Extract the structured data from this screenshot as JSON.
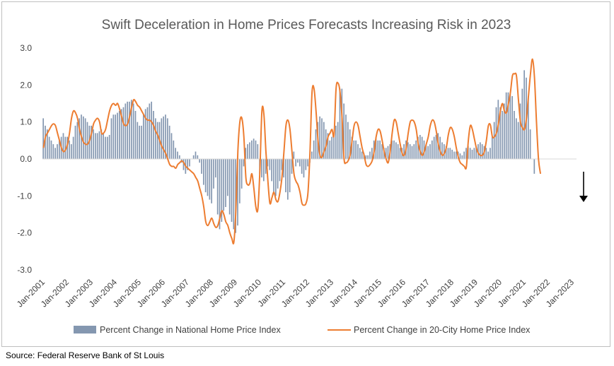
{
  "source": "Source: Federal Reserve Bank of St Louis",
  "chart_data": {
    "type": "bar+line",
    "title": "Swift Deceleration in Home Prices Forecasts Increasing Risk in 2023",
    "ylim": [
      -3.0,
      3.0
    ],
    "yticks": [
      "3.0",
      "2.0",
      "1.0",
      "0.0",
      "-1.0",
      "-2.0",
      "-3.0"
    ],
    "xticks": [
      "Jan-2001",
      "Jan-2002",
      "Jan-2003",
      "Jan-2004",
      "Jan-2005",
      "Jan-2006",
      "Jan-2007",
      "Jan-2008",
      "Jan-2009",
      "Jan-2010",
      "Jan-2011",
      "Jan-2012",
      "Jan-2013",
      "Jan-2014",
      "Jan-2015",
      "Jan-2016",
      "Jan-2017",
      "Jan-2018",
      "Jan-2019",
      "Jan-2020",
      "Jan-2021",
      "Jan-2022",
      "Jan-2023"
    ],
    "grid": false,
    "legend_position": "bottom",
    "colors": {
      "bars": "#8497b0",
      "line": "#ed7d31",
      "title": "#595959"
    },
    "series": [
      {
        "name": "Percent Change in National Home Price Index",
        "kind": "bar",
        "start": "2001-01",
        "values": [
          1.1,
          0.9,
          0.8,
          0.6,
          0.5,
          0.4,
          0.3,
          0.4,
          0.5,
          0.6,
          0.7,
          0.6,
          0.6,
          0.5,
          0.4,
          0.6,
          0.9,
          1.0,
          1.1,
          1.2,
          1.15,
          1.1,
          1.0,
          0.9,
          0.9,
          0.8,
          0.7,
          0.7,
          0.75,
          0.8,
          0.7,
          0.6,
          0.6,
          0.65,
          1.1,
          1.2,
          1.2,
          1.25,
          1.3,
          1.35,
          1.4,
          1.5,
          1.55,
          1.55,
          1.6,
          1.5,
          1.3,
          1.0,
          0.9,
          0.9,
          1.2,
          1.35,
          1.4,
          1.5,
          1.55,
          1.3,
          1.1,
          1.0,
          1.0,
          1.1,
          1.15,
          1.2,
          1.1,
          0.9,
          0.7,
          0.5,
          0.3,
          0.2,
          0.1,
          -0.1,
          -0.3,
          -0.4,
          -0.3,
          -0.2,
          0.0,
          0.1,
          0.2,
          0.1,
          -0.1,
          -0.4,
          -0.7,
          -0.9,
          -1.0,
          -1.1,
          -1.2,
          -0.8,
          -0.5,
          -1.5,
          -1.9,
          -1.7,
          -1.4,
          -1.3,
          -1.0,
          -1.5,
          -1.7,
          -1.9,
          -2.0,
          -1.8,
          -1.2,
          -0.8,
          -0.2,
          0.3,
          0.4,
          0.45,
          0.5,
          0.55,
          0.5,
          0.4,
          -0.4,
          -0.5,
          -0.6,
          -0.4,
          -0.2,
          -0.3,
          -0.6,
          -0.9,
          -1.0,
          -0.8,
          -0.6,
          -0.3,
          -0.5,
          -0.9,
          -1.1,
          -0.9,
          -0.4,
          0.2,
          -0.2,
          -0.1,
          -0.2,
          -0.4,
          -0.5,
          -0.3,
          -0.2,
          -0.1,
          0.2,
          0.5,
          0.8,
          1.0,
          1.15,
          1.1,
          1.0,
          0.8,
          0.7,
          0.5,
          0.6,
          0.7,
          0.9,
          1.0,
          1.9,
          1.9,
          1.5,
          1.2,
          1.0,
          0.8,
          0.6,
          0.5,
          0.5,
          0.4,
          0.3,
          0.2,
          0.15,
          0.1,
          0.1,
          0.2,
          0.3,
          0.5,
          0.6,
          0.5,
          0.5,
          0.4,
          0.3,
          0.3,
          0.35,
          0.4,
          0.5,
          0.5,
          0.45,
          0.4,
          0.3,
          0.3,
          0.4,
          0.5,
          0.45,
          0.4,
          0.35,
          0.4,
          0.5,
          0.6,
          0.65,
          0.6,
          0.5,
          0.4,
          0.35,
          0.4,
          0.5,
          0.6,
          0.65,
          0.7,
          0.6,
          0.45,
          0.4,
          0.35,
          0.3,
          0.3,
          0.25,
          0.2,
          0.2,
          0.2,
          0.15,
          0.1,
          0.2,
          0.3,
          0.35,
          0.3,
          0.25,
          0.3,
          0.35,
          0.4,
          0.45,
          0.4,
          0.35,
          0.3,
          0.2,
          0.3,
          0.6,
          1.0,
          1.4,
          1.6,
          1.4,
          1.3,
          1.5,
          1.8,
          1.8,
          1.75,
          1.7,
          1.3,
          1.1,
          1.0,
          1.5,
          1.9,
          2.4,
          2.2,
          1.7,
          0.8,
          0.0,
          -0.4
        ]
      },
      {
        "name": "Percent Change in 20-City Home Price Index",
        "kind": "line",
        "start": "2001-01",
        "values": [
          0.3,
          0.6,
          0.7,
          0.8,
          0.9,
          0.95,
          0.9,
          0.7,
          0.5,
          0.3,
          0.2,
          0.25,
          0.4,
          0.7,
          1.1,
          1.3,
          1.25,
          1.1,
          0.8,
          0.6,
          0.45,
          0.4,
          0.4,
          0.5,
          0.7,
          0.95,
          1.05,
          1.1,
          1.0,
          0.7,
          0.7,
          0.8,
          1.05,
          1.3,
          1.45,
          1.5,
          1.45,
          1.5,
          1.35,
          1.15,
          0.95,
          0.9,
          0.95,
          1.15,
          1.4,
          1.6,
          1.55,
          1.45,
          1.4,
          1.3,
          1.2,
          1.1,
          1.05,
          1.05,
          1.0,
          0.9,
          0.75,
          0.65,
          0.5,
          0.35,
          0.25,
          0.15,
          0.0,
          -0.15,
          -0.2,
          -0.2,
          -0.25,
          -0.15,
          -0.1,
          -0.05,
          -0.1,
          -0.2,
          -0.25,
          -0.3,
          -0.35,
          -0.4,
          -0.5,
          -0.6,
          -0.8,
          -1.0,
          -1.3,
          -1.7,
          -1.8,
          -1.7,
          -1.6,
          -1.75,
          -1.85,
          -1.8,
          -1.6,
          -1.4,
          -1.5,
          -1.7,
          -1.8,
          -2.0,
          -2.15,
          -2.25,
          -1.4,
          0.2,
          1.0,
          1.1,
          0.6,
          -0.5,
          -0.7,
          -0.65,
          -0.4,
          -0.8,
          -1.3,
          -1.35,
          -0.3,
          1.3,
          1.2,
          0.2,
          -0.6,
          -1.2,
          -1.05,
          -0.9,
          -1.1,
          -1.15,
          -0.9,
          -0.5,
          0.2,
          0.9,
          1.05,
          0.8,
          0.2,
          -0.4,
          -0.6,
          -0.7,
          -0.9,
          -1.2,
          -1.25,
          -1.2,
          -0.9,
          0.2,
          1.8,
          1.9,
          1.3,
          0.5,
          0.1,
          0.05,
          0.2,
          0.35,
          0.6,
          0.7,
          0.8,
          0.65,
          1.9,
          2.05,
          1.8,
          1.1,
          0.0,
          -0.1,
          -0.05,
          0.1,
          0.5,
          0.9,
          1.0,
          0.9,
          0.6,
          0.3,
          0.1,
          -0.15,
          -0.2,
          -0.15,
          -0.05,
          0.2,
          0.6,
          0.8,
          0.75,
          0.5,
          0.2,
          0.0,
          -0.1,
          0.2,
          0.7,
          1.05,
          1.0,
          0.7,
          0.4,
          0.15,
          0.1,
          0.3,
          0.7,
          1.0,
          1.05,
          1.0,
          0.8,
          0.4,
          0.2,
          0.1,
          0.2,
          0.4,
          0.6,
          0.9,
          1.05,
          1.0,
          0.75,
          0.4,
          0.2,
          0.1,
          0.15,
          0.3,
          0.65,
          0.85,
          0.8,
          0.6,
          0.3,
          0.05,
          -0.1,
          -0.15,
          -0.2,
          -0.22,
          0.5,
          0.9,
          0.8,
          0.55,
          0.3,
          0.15,
          0.1,
          0.1,
          0.2,
          0.5,
          0.9,
          0.92,
          0.6,
          0.6,
          0.7,
          0.95,
          1.3,
          1.5,
          1.3,
          1.25,
          1.5,
          1.8,
          2.25,
          2.3,
          2.25,
          1.6,
          1.0,
          0.85,
          0.8,
          1.1,
          1.7,
          2.3,
          2.7,
          2.2,
          1.0,
          0.0,
          -0.4
        ]
      }
    ],
    "annotations": [
      {
        "type": "arrow",
        "direction": "down",
        "at": "2022-08",
        "color": "#000000"
      }
    ]
  }
}
